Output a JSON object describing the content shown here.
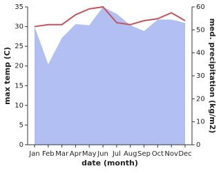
{
  "chart_data": {
    "type": "line-area",
    "x_label": "date (month)",
    "y_label": "max temp (C)",
    "y2_label": "med. precipitation (kg/m2)",
    "categories": [
      "Jan",
      "Feb",
      "Mar",
      "Apr",
      "May",
      "Jun",
      "Jul",
      "Aug",
      "Sep",
      "Oct",
      "Nov",
      "Dec"
    ],
    "series": [
      {
        "name": "max temp",
        "color": "#c8525a",
        "axis": "y",
        "values": [
          30,
          30.5,
          30.5,
          33,
          34.5,
          35,
          31,
          30.5,
          31.5,
          32,
          33.5,
          31.5
        ]
      },
      {
        "name": "med. precipitation",
        "color": "#b2bff2",
        "axis": "y2",
        "values": [
          51.5,
          35,
          46.5,
          52.5,
          52,
          60,
          57,
          52,
          49.5,
          54.5,
          54.5,
          53
        ]
      }
    ],
    "ylim": [
      0,
      35
    ],
    "yticks": [
      0,
      5,
      10,
      15,
      20,
      25,
      30,
      35
    ],
    "y2lim": [
      0,
      60
    ],
    "y2ticks": [
      0,
      10,
      20,
      30,
      40,
      50,
      60
    ]
  }
}
